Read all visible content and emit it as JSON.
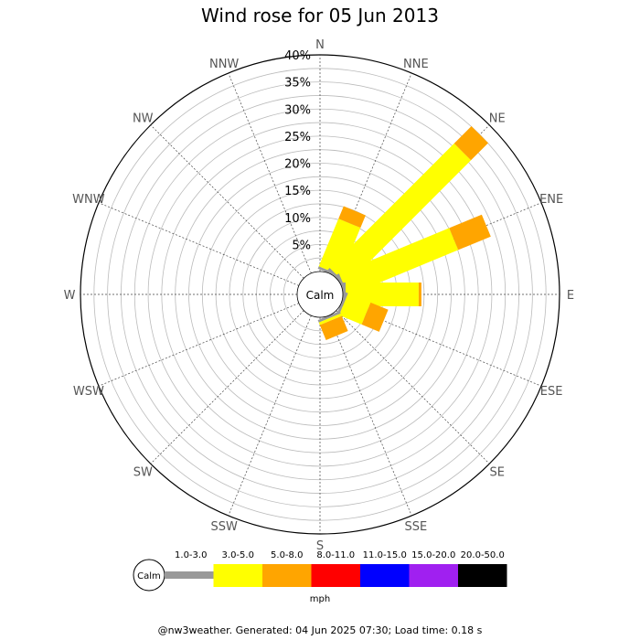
{
  "chart_data": {
    "type": "wind-rose",
    "title": "Wind rose for 05 Jun 2013",
    "directions": [
      "N",
      "NNE",
      "NE",
      "ENE",
      "E",
      "ESE",
      "SE",
      "SSE",
      "S",
      "SSW",
      "SW",
      "WSW",
      "W",
      "WNW",
      "NW",
      "NNW"
    ],
    "radial_ticks": [
      "5%",
      "10%",
      "15%",
      "20%",
      "25%",
      "30%",
      "35%",
      "40%"
    ],
    "radial_max_percent": 40,
    "grid": true,
    "calm_label": "Calm",
    "speed_bins": [
      {
        "label": "1.0-3.0",
        "color": "#999999"
      },
      {
        "label": "3.0-5.0",
        "color": "#ffff00"
      },
      {
        "label": "5.0-8.0",
        "color": "#ffa500"
      },
      {
        "label": "8.0-11.0",
        "color": "#ff0000"
      },
      {
        "label": "11.0-15.0",
        "color": "#0000ff"
      },
      {
        "label": "15.0-20.0",
        "color": "#a020f0"
      },
      {
        "label": "20.0-50.0",
        "color": "#000000"
      }
    ],
    "units": "mph",
    "series": [
      {
        "direction": "NNE",
        "values": [
          0.5,
          9.5,
          2.5,
          0,
          0,
          0,
          0
        ]
      },
      {
        "direction": "NE",
        "values": [
          0.5,
          32.5,
          4.5,
          0,
          0,
          0,
          0
        ]
      },
      {
        "direction": "ENE",
        "values": [
          0.5,
          22,
          6.5,
          0,
          0,
          0,
          0
        ]
      },
      {
        "direction": "E",
        "values": [
          0.5,
          13.5,
          0.5,
          0,
          0,
          0,
          0
        ]
      },
      {
        "direction": "ESE",
        "values": [
          0.5,
          4.5,
          3.5,
          0,
          0,
          0,
          0
        ]
      },
      {
        "direction": "SE",
        "values": [
          0,
          0,
          0,
          0,
          0,
          0,
          0
        ]
      },
      {
        "direction": "SSE",
        "values": [
          0.5,
          0.5,
          3,
          0,
          0,
          0,
          0
        ]
      },
      {
        "direction": "N",
        "values": [
          0,
          0,
          0,
          0,
          0,
          0,
          0
        ]
      }
    ]
  },
  "legend": {
    "calm_label": "Calm",
    "units_label": "mph"
  },
  "footer": "@nw3weather. Generated: 04 Jun 2025 07:30; Load time: 0.18 s"
}
